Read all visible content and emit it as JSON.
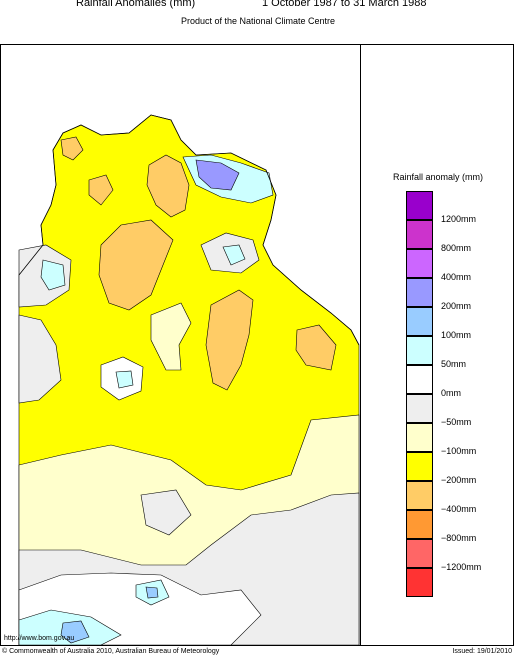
{
  "header": {
    "title_left": "Rainfall Anomalies (mm)",
    "title_right": "1 October 1987 to 31 March 1988",
    "subtitle": "Product of the National Climate Centre"
  },
  "legend": {
    "title": "Rainfall anomaly (mm)",
    "colors": [
      "#9900cc",
      "#cc33cc",
      "#cc66ff",
      "#9999ff",
      "#99ccff",
      "#ccffff",
      "#ffffff",
      "#eeeeee",
      "#ffffcc",
      "#ffff00",
      "#ffcc66",
      "#ff9933",
      "#ff6666",
      "#ff3333"
    ],
    "labels": [
      "1200mm",
      "800mm",
      "400mm",
      "200mm",
      "100mm",
      "50mm",
      "0mm",
      "−50mm",
      "−100mm",
      "−200mm",
      "−400mm",
      "−800mm",
      "−1200mm"
    ]
  },
  "map_colors": {
    "sea": "#ffffff",
    "gt_50": "#ccffff",
    "gt_100": "#99ccff",
    "gt_200": "#9999ff",
    "zero": "#ffffff",
    "neg_50": "#eeeeee",
    "neg_100": "#ffffcc",
    "neg_200": "#ffff00",
    "neg_400": "#ffcc66",
    "neg_800": "#ff9933"
  },
  "footer": {
    "url": "http://www.bom.gov.au",
    "copyright": "© Commonwealth of Australia 2010, Australian Bureau of Meteorology",
    "issued": "Issued: 19/01/2010"
  }
}
